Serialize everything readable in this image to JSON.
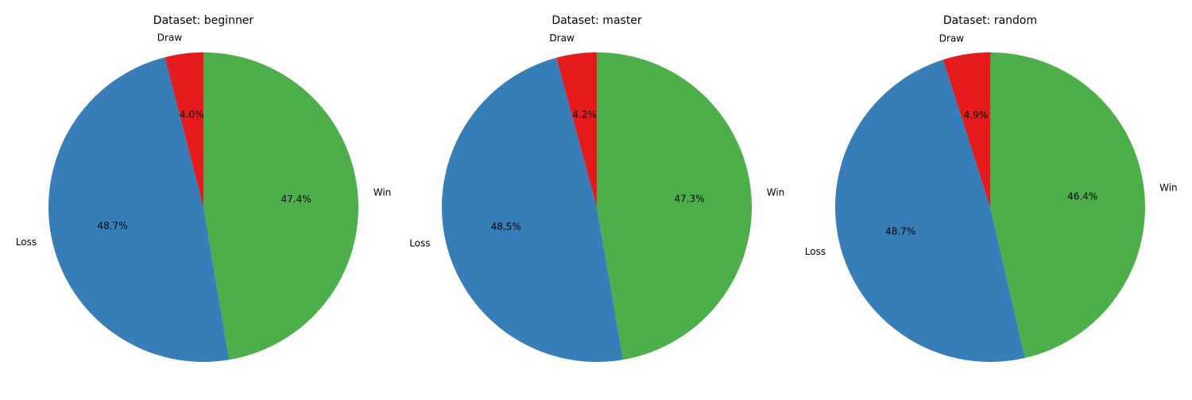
{
  "chart_data": [
    {
      "type": "pie",
      "title": "Dataset: beginner",
      "labels": [
        "Win",
        "Loss",
        "Draw"
      ],
      "values": [
        47.4,
        48.7,
        4.0
      ],
      "percent_labels": [
        "47.4%",
        "48.7%",
        "4.0%"
      ],
      "colors": [
        "#4daf4a",
        "#377eb8",
        "#e41a1c"
      ],
      "start_angle": "90",
      "direction": "clockwise"
    },
    {
      "type": "pie",
      "title": "Dataset: master",
      "labels": [
        "Win",
        "Loss",
        "Draw"
      ],
      "values": [
        47.3,
        48.5,
        4.2
      ],
      "percent_labels": [
        "47.3%",
        "48.5%",
        "4.2%"
      ],
      "colors": [
        "#4daf4a",
        "#377eb8",
        "#e41a1c"
      ],
      "start_angle": "90",
      "direction": "clockwise"
    },
    {
      "type": "pie",
      "title": "Dataset: random",
      "labels": [
        "Win",
        "Loss",
        "Draw"
      ],
      "values": [
        46.4,
        48.7,
        4.9
      ],
      "percent_labels": [
        "46.4%",
        "48.7%",
        "4.9%"
      ],
      "colors": [
        "#4daf4a",
        "#377eb8",
        "#e41a1c"
      ],
      "start_angle": "90",
      "direction": "clockwise"
    }
  ]
}
